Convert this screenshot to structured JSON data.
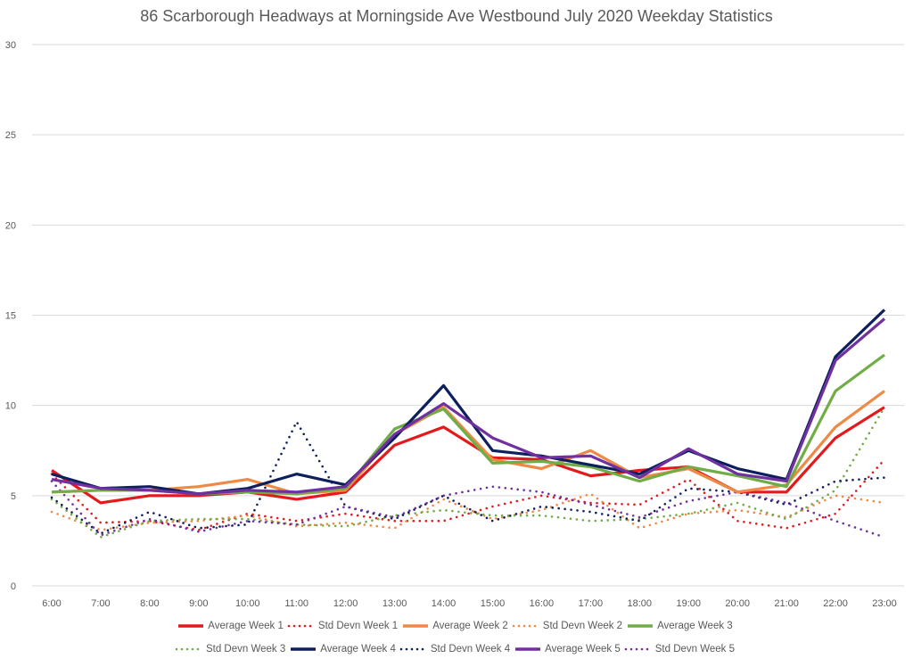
{
  "chart_data": {
    "type": "line",
    "title": "86 Scarborough Headways at Morningside Ave Westbound July 2020 Weekday Statistics",
    "xlabel": "",
    "ylabel": "",
    "ylim": [
      0,
      30
    ],
    "yticks": [
      0,
      5,
      10,
      15,
      20,
      25,
      30
    ],
    "grid": true,
    "legend_position": "bottom",
    "categories": [
      "6:00",
      "7:00",
      "8:00",
      "9:00",
      "10:00",
      "11:00",
      "12:00",
      "13:00",
      "14:00",
      "15:00",
      "16:00",
      "17:00",
      "18:00",
      "19:00",
      "20:00",
      "21:00",
      "22:00",
      "23:00"
    ],
    "series": [
      {
        "name": "Average Week 1",
        "color": "#e31a1c",
        "style": "solid",
        "values": [
          6.4,
          4.6,
          5.0,
          5.0,
          5.2,
          4.8,
          5.2,
          7.8,
          8.8,
          7.1,
          7.0,
          6.1,
          6.4,
          6.6,
          5.2,
          5.2,
          8.2,
          9.9
        ]
      },
      {
        "name": "Std Devn Week 1",
        "color": "#e31a1c",
        "style": "dotted",
        "values": [
          6.2,
          3.5,
          3.6,
          3.1,
          4.0,
          3.6,
          4.0,
          3.6,
          3.6,
          4.4,
          5.0,
          4.6,
          4.5,
          5.9,
          3.6,
          3.2,
          4.0,
          7.0
        ]
      },
      {
        "name": "Average Week 2",
        "color": "#ed8a45",
        "style": "solid",
        "values": [
          5.2,
          5.3,
          5.3,
          5.5,
          5.9,
          5.1,
          5.3,
          8.4,
          9.9,
          7.0,
          6.5,
          7.5,
          6.0,
          6.5,
          5.2,
          5.6,
          8.8,
          10.8
        ]
      },
      {
        "name": "Std Devn Week 2",
        "color": "#ed8a45",
        "style": "dotted",
        "values": [
          4.1,
          3.1,
          3.5,
          3.6,
          3.9,
          3.3,
          3.5,
          3.2,
          4.8,
          3.7,
          4.2,
          5.1,
          3.2,
          4.0,
          4.2,
          3.8,
          5.0,
          4.6
        ]
      },
      {
        "name": "Average Week 3",
        "color": "#70ad47",
        "style": "solid",
        "values": [
          5.2,
          5.3,
          5.3,
          5.1,
          5.2,
          5.1,
          5.4,
          8.7,
          9.8,
          6.8,
          6.9,
          6.6,
          5.8,
          6.6,
          6.1,
          5.5,
          10.8,
          12.8
        ]
      },
      {
        "name": "Std Devn Week 3",
        "color": "#70ad47",
        "style": "dotted",
        "values": [
          4.8,
          2.7,
          3.6,
          3.7,
          3.7,
          3.4,
          3.3,
          3.9,
          4.2,
          3.9,
          3.9,
          3.6,
          3.7,
          4.0,
          4.6,
          3.7,
          5.3,
          9.9
        ]
      },
      {
        "name": "Average Week 4",
        "color": "#0d1f5c",
        "style": "solid",
        "values": [
          6.2,
          5.4,
          5.5,
          5.1,
          5.4,
          6.2,
          5.6,
          8.2,
          11.1,
          7.5,
          7.2,
          6.7,
          6.2,
          7.5,
          6.5,
          5.9,
          12.7,
          15.3
        ]
      },
      {
        "name": "Std Devn Week 4",
        "color": "#0d1f5c",
        "style": "dotted",
        "values": [
          4.9,
          2.9,
          4.1,
          3.2,
          3.4,
          9.1,
          4.4,
          3.7,
          5.0,
          3.6,
          4.4,
          4.1,
          3.6,
          5.4,
          5.2,
          4.5,
          5.8,
          6.0
        ]
      },
      {
        "name": "Average Week 5",
        "color": "#7030a0",
        "style": "solid",
        "values": [
          5.9,
          5.4,
          5.3,
          5.1,
          5.3,
          5.2,
          5.5,
          8.4,
          10.1,
          8.2,
          7.1,
          7.2,
          6.0,
          7.6,
          6.2,
          5.8,
          12.5,
          14.8
        ]
      },
      {
        "name": "Std Devn Week 5",
        "color": "#7030a0",
        "style": "dotted",
        "values": [
          5.8,
          2.8,
          3.7,
          3.0,
          3.6,
          3.4,
          4.4,
          3.8,
          5.0,
          5.5,
          5.2,
          4.5,
          3.8,
          4.7,
          5.2,
          4.6,
          3.6,
          2.7
        ]
      }
    ]
  }
}
